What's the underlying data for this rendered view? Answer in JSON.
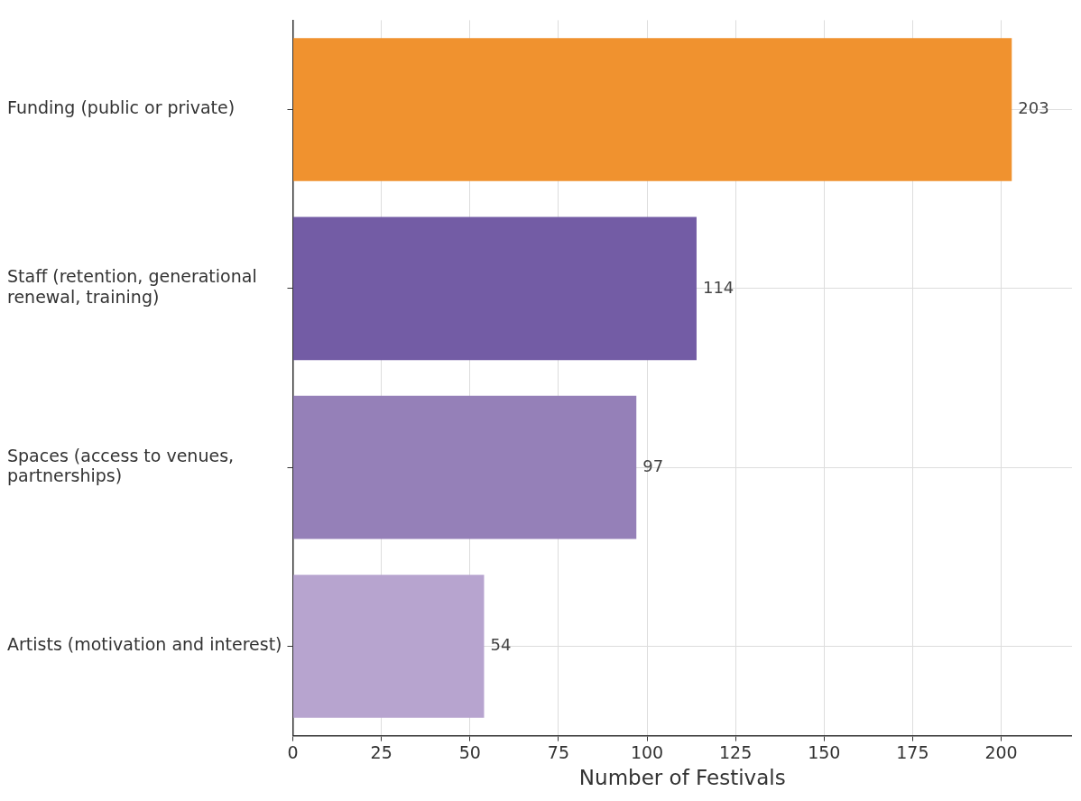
{
  "chart_data": {
    "type": "bar",
    "orientation": "horizontal",
    "xlabel": "Number of Festivals",
    "categories": [
      "Funding (public or private)",
      "Staff (retention, generational renewal, training)",
      "Spaces (access to venues, partnerships)",
      "Artists (motivation and interest)"
    ],
    "values": [
      203,
      114,
      97,
      54
    ],
    "colors": [
      "#f0922f",
      "#735ca5",
      "#9580b8",
      "#b7a4cf"
    ],
    "xlim": [
      0,
      220
    ],
    "xticks": [
      0,
      25,
      50,
      75,
      100,
      125,
      150,
      175,
      200
    ],
    "grid": true,
    "data_labels": true
  }
}
